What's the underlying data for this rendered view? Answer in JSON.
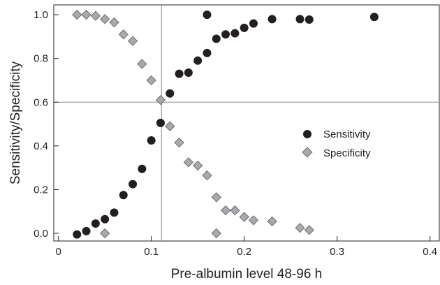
{
  "chart_data": {
    "type": "scatter",
    "xlabel": "Pre-albumin level 48-96 h",
    "ylabel": "Sensitivity/Specificity",
    "xlim": [
      -0.005,
      0.41
    ],
    "ylim": [
      -0.035,
      1.045
    ],
    "x_ticks": [
      0,
      0.1,
      0.2,
      0.3,
      0.4
    ],
    "x_tick_labels": [
      "0",
      "0.1",
      "0.2",
      "0.3",
      "0.4"
    ],
    "y_ticks": [
      0.0,
      0.2,
      0.4,
      0.6,
      0.8,
      1.0
    ],
    "y_tick_labels": [
      "0.0",
      "0.2",
      "0.4",
      "0.6",
      "0.8",
      "1.0"
    ],
    "reference_lines": {
      "x": 0.111,
      "y": 0.6
    },
    "grid": false,
    "legend_position": "right",
    "series": [
      {
        "name": "Sensitivity",
        "marker": "circle",
        "color": "#231f20",
        "points": [
          [
            0.02,
            -0.005
          ],
          [
            0.03,
            0.01
          ],
          [
            0.04,
            0.045
          ],
          [
            0.05,
            0.065
          ],
          [
            0.06,
            0.095
          ],
          [
            0.07,
            0.175
          ],
          [
            0.08,
            0.225
          ],
          [
            0.09,
            0.295
          ],
          [
            0.1,
            0.425
          ],
          [
            0.11,
            0.505
          ],
          [
            0.12,
            0.64
          ],
          [
            0.13,
            0.73
          ],
          [
            0.14,
            0.735
          ],
          [
            0.15,
            0.79
          ],
          [
            0.16,
            0.825
          ],
          [
            0.16,
            1.0
          ],
          [
            0.17,
            0.89
          ],
          [
            0.18,
            0.91
          ],
          [
            0.19,
            0.915
          ],
          [
            0.2,
            0.94
          ],
          [
            0.21,
            0.96
          ],
          [
            0.23,
            0.98
          ],
          [
            0.26,
            0.98
          ],
          [
            0.27,
            0.978
          ],
          [
            0.34,
            0.99
          ]
        ]
      },
      {
        "name": "Specificity",
        "marker": "diamond",
        "color": "#a7a9ac",
        "points": [
          [
            0.02,
            1.0
          ],
          [
            0.03,
            1.0
          ],
          [
            0.04,
            0.995
          ],
          [
            0.05,
            0.98
          ],
          [
            0.05,
            0.0
          ],
          [
            0.06,
            0.965
          ],
          [
            0.07,
            0.91
          ],
          [
            0.08,
            0.88
          ],
          [
            0.09,
            0.775
          ],
          [
            0.1,
            0.7
          ],
          [
            0.11,
            0.61
          ],
          [
            0.12,
            0.49
          ],
          [
            0.13,
            0.415
          ],
          [
            0.14,
            0.325
          ],
          [
            0.15,
            0.31
          ],
          [
            0.16,
            0.265
          ],
          [
            0.17,
            0.165
          ],
          [
            0.17,
            0.0
          ],
          [
            0.18,
            0.105
          ],
          [
            0.19,
            0.105
          ],
          [
            0.2,
            0.075
          ],
          [
            0.21,
            0.06
          ],
          [
            0.23,
            0.055
          ],
          [
            0.26,
            0.025
          ],
          [
            0.27,
            0.015
          ]
        ]
      }
    ]
  }
}
